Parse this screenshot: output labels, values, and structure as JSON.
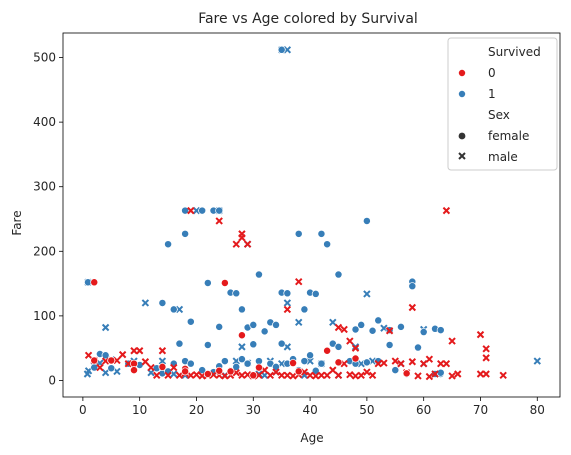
{
  "chart_data": {
    "type": "scatter",
    "title": "Fare vs Age colored by Survival",
    "xlabel": "Age",
    "ylabel": "Fare",
    "xlim": [
      -3.5,
      84
    ],
    "ylim": [
      -25.6,
      538
    ],
    "xticks": [
      0,
      10,
      20,
      30,
      40,
      50,
      60,
      70,
      80
    ],
    "yticks": [
      0,
      100,
      200,
      300,
      400,
      500
    ],
    "grid": false,
    "legend_position": "top-right",
    "legend": {
      "hue_title": "Survived",
      "hue_items": [
        {
          "label": "0",
          "color": "#e41a1c"
        },
        {
          "label": "1",
          "color": "#377eb8"
        }
      ],
      "style_title": "Sex",
      "style_items": [
        {
          "label": "female",
          "marker": "circle"
        },
        {
          "label": "male",
          "marker": "x"
        }
      ]
    },
    "colors": {
      "0": "#e41a1c",
      "1": "#377eb8"
    },
    "series": [
      {
        "survived": 1,
        "sex": "male",
        "points": [
          [
            35,
            512
          ],
          [
            36,
            512
          ],
          [
            0.9,
            152
          ],
          [
            4,
            82
          ],
          [
            11,
            120
          ],
          [
            17,
            110
          ],
          [
            20,
            263
          ],
          [
            24,
            263
          ],
          [
            29,
            211
          ],
          [
            36,
            120
          ],
          [
            38,
            90
          ],
          [
            44,
            90
          ],
          [
            50,
            134
          ],
          [
            53,
            81
          ],
          [
            60,
            79
          ],
          [
            80,
            30
          ],
          [
            0.8,
            10
          ],
          [
            1,
            15
          ],
          [
            2,
            30
          ],
          [
            3,
            27
          ],
          [
            4,
            12
          ],
          [
            5,
            32
          ],
          [
            6,
            14
          ],
          [
            9,
            30
          ],
          [
            12,
            12
          ],
          [
            14,
            30
          ],
          [
            16,
            10
          ],
          [
            18,
            8
          ],
          [
            22,
            10
          ],
          [
            25,
            8
          ],
          [
            27,
            30
          ],
          [
            28,
            52
          ],
          [
            29,
            27
          ],
          [
            31,
            10
          ],
          [
            32,
            8
          ],
          [
            33,
            30
          ],
          [
            34,
            13
          ],
          [
            35,
            26
          ],
          [
            36,
            52
          ],
          [
            39,
            8
          ],
          [
            40,
            30
          ],
          [
            42,
            26
          ],
          [
            45,
            8
          ],
          [
            48,
            52
          ],
          [
            49,
            26
          ],
          [
            51,
            30
          ],
          [
            56,
            26
          ],
          [
            60,
            26
          ],
          [
            62,
            10
          ]
        ]
      },
      {
        "survived": 1,
        "sex": "female",
        "points": [
          [
            35,
            512
          ],
          [
            0.9,
            152
          ],
          [
            14,
            120
          ],
          [
            15,
            211
          ],
          [
            16,
            110
          ],
          [
            18,
            263
          ],
          [
            18,
            227
          ],
          [
            19,
            91
          ],
          [
            21,
            263
          ],
          [
            22,
            151
          ],
          [
            23,
            263
          ],
          [
            24,
            263
          ],
          [
            24,
            83
          ],
          [
            25,
            151
          ],
          [
            26,
            136
          ],
          [
            27,
            135
          ],
          [
            28,
            110
          ],
          [
            29,
            82
          ],
          [
            30,
            86
          ],
          [
            31,
            164
          ],
          [
            33,
            90
          ],
          [
            34,
            86
          ],
          [
            35,
            136
          ],
          [
            36,
            135
          ],
          [
            38,
            227
          ],
          [
            39,
            110
          ],
          [
            40,
            136
          ],
          [
            41,
            134
          ],
          [
            42,
            227
          ],
          [
            43,
            211
          ],
          [
            44,
            57
          ],
          [
            45,
            164
          ],
          [
            48,
            79
          ],
          [
            49,
            86
          ],
          [
            50,
            247
          ],
          [
            51,
            77
          ],
          [
            52,
            93
          ],
          [
            54,
            78
          ],
          [
            56,
            83
          ],
          [
            58,
            153
          ],
          [
            58,
            146
          ],
          [
            60,
            75
          ],
          [
            62,
            80
          ],
          [
            63,
            78
          ],
          [
            63,
            10
          ],
          [
            2,
            20
          ],
          [
            3,
            41
          ],
          [
            4,
            39
          ],
          [
            5,
            19
          ],
          [
            8,
            26
          ],
          [
            10,
            24
          ],
          [
            13,
            19
          ],
          [
            14,
            11
          ],
          [
            15,
            14
          ],
          [
            16,
            26
          ],
          [
            17,
            57
          ],
          [
            18,
            30
          ],
          [
            19,
            26
          ],
          [
            21,
            16
          ],
          [
            22,
            55
          ],
          [
            23,
            13
          ],
          [
            24,
            22
          ],
          [
            25,
            30
          ],
          [
            26,
            15
          ],
          [
            27,
            21
          ],
          [
            28,
            33
          ],
          [
            29,
            26
          ],
          [
            30,
            56
          ],
          [
            31,
            30
          ],
          [
            32,
            76
          ],
          [
            33,
            26
          ],
          [
            34,
            21
          ],
          [
            35,
            57
          ],
          [
            36,
            26
          ],
          [
            37,
            33
          ],
          [
            38,
            16
          ],
          [
            39,
            30
          ],
          [
            40,
            39
          ],
          [
            41,
            15
          ],
          [
            42,
            26
          ],
          [
            45,
            52
          ],
          [
            47,
            30
          ],
          [
            48,
            26
          ],
          [
            50,
            28
          ],
          [
            52,
            30
          ],
          [
            54,
            55
          ],
          [
            55,
            16
          ],
          [
            57,
            10
          ],
          [
            59,
            51
          ],
          [
            62,
            10
          ],
          [
            63,
            12
          ]
        ]
      },
      {
        "survived": 0,
        "sex": "male",
        "points": [
          [
            19,
            263
          ],
          [
            24,
            247
          ],
          [
            27,
            211
          ],
          [
            28,
            227
          ],
          [
            28,
            221
          ],
          [
            29,
            211
          ],
          [
            36,
            110
          ],
          [
            38,
            153
          ],
          [
            45,
            82
          ],
          [
            46,
            79
          ],
          [
            47,
            61
          ],
          [
            48,
            50
          ],
          [
            54,
            77
          ],
          [
            58,
            113
          ],
          [
            61,
            33
          ],
          [
            64,
            263
          ],
          [
            65,
            61
          ],
          [
            70,
            71
          ],
          [
            71,
            49
          ],
          [
            71,
            35
          ],
          [
            74,
            8
          ],
          [
            1,
            39
          ],
          [
            2,
            31
          ],
          [
            3,
            20
          ],
          [
            4,
            30
          ],
          [
            6,
            31
          ],
          [
            7,
            40
          ],
          [
            8,
            26
          ],
          [
            9,
            46
          ],
          [
            10,
            46
          ],
          [
            11,
            29
          ],
          [
            12,
            20
          ],
          [
            13,
            8
          ],
          [
            14,
            46
          ],
          [
            15,
            8
          ],
          [
            16,
            20
          ],
          [
            17,
            8
          ],
          [
            18,
            11
          ],
          [
            19,
            8
          ],
          [
            20,
            9
          ],
          [
            21,
            7
          ],
          [
            22,
            8
          ],
          [
            23,
            9
          ],
          [
            24,
            8
          ],
          [
            25,
            7
          ],
          [
            26,
            8
          ],
          [
            27,
            12
          ],
          [
            28,
            8
          ],
          [
            29,
            9
          ],
          [
            30,
            7
          ],
          [
            31,
            8
          ],
          [
            32,
            16
          ],
          [
            33,
            8
          ],
          [
            34,
            13
          ],
          [
            35,
            8
          ],
          [
            36,
            8
          ],
          [
            37,
            7
          ],
          [
            38,
            9
          ],
          [
            39,
            13
          ],
          [
            40,
            8
          ],
          [
            41,
            7
          ],
          [
            42,
            8
          ],
          [
            43,
            8
          ],
          [
            44,
            16
          ],
          [
            45,
            8
          ],
          [
            46,
            26
          ],
          [
            47,
            9
          ],
          [
            48,
            7
          ],
          [
            49,
            8
          ],
          [
            50,
            13
          ],
          [
            51,
            8
          ],
          [
            52,
            26
          ],
          [
            53,
            27
          ],
          [
            55,
            30
          ],
          [
            56,
            26
          ],
          [
            57,
            12
          ],
          [
            58,
            29
          ],
          [
            59,
            7
          ],
          [
            60,
            26
          ],
          [
            61,
            6
          ],
          [
            62,
            10
          ],
          [
            63,
            26
          ],
          [
            64,
            26
          ],
          [
            65,
            7
          ],
          [
            66,
            10
          ],
          [
            70,
            10
          ],
          [
            71,
            10
          ]
        ]
      },
      {
        "survived": 0,
        "sex": "female",
        "points": [
          [
            2,
            152
          ],
          [
            25,
            151
          ],
          [
            28,
            70
          ],
          [
            37,
            27
          ],
          [
            43,
            46
          ],
          [
            9,
            26
          ],
          [
            14,
            21
          ],
          [
            18,
            18
          ],
          [
            22,
            10
          ],
          [
            26,
            14
          ],
          [
            30,
            8
          ],
          [
            31,
            20
          ],
          [
            2,
            31
          ],
          [
            5,
            31
          ],
          [
            9,
            16
          ],
          [
            18,
            14
          ],
          [
            24,
            15
          ],
          [
            38,
            14
          ],
          [
            45,
            28
          ],
          [
            48,
            34
          ],
          [
            57,
            11
          ]
        ]
      }
    ]
  }
}
